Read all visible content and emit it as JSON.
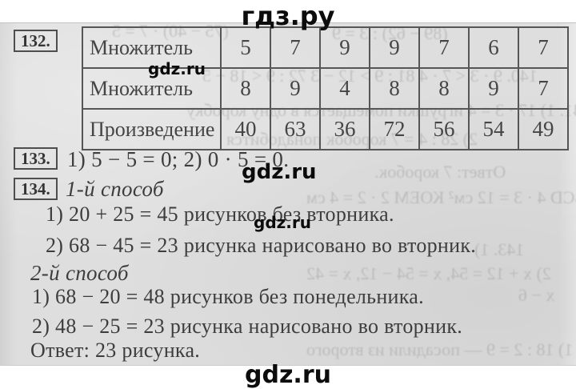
{
  "header": {
    "logo": "гдз.ру"
  },
  "footer": {
    "logo": "gdz.ru"
  },
  "watermarks": {
    "w1": "gdz.ru",
    "w2": "gdz.ru",
    "w3": "gdz.ru"
  },
  "colors": {
    "scan_background": "#dedede",
    "ink": "#3d3d3d",
    "watermark": "#0b0b0b",
    "table_border": "#565656"
  },
  "p132": {
    "number": "132.",
    "table": {
      "rows": [
        {
          "label": "Множитель",
          "values": [
            5,
            7,
            9,
            9,
            7,
            6,
            7
          ]
        },
        {
          "label": "Множитель",
          "values": [
            8,
            9,
            4,
            8,
            8,
            9,
            7
          ]
        },
        {
          "label": "Произведение",
          "values": [
            40,
            63,
            36,
            72,
            56,
            54,
            49
          ]
        }
      ]
    }
  },
  "p133": {
    "number": "133.",
    "solution": "1) 5 − 5 = 0; 2) 0 · 5 = 0."
  },
  "p134": {
    "number": "134.",
    "method1": {
      "title": "1-й способ",
      "steps": [
        "1) 20 + 25 = 45 рисунков без вторника.",
        "2) 68 − 45 = 23 рисунка нарисовано во вторник."
      ]
    },
    "method2": {
      "title": "2-й способ",
      "steps": [
        "1) 68 − 20 = 48 рисунков без понедельника.",
        "2) 48 − 25 = 23 рисунка нарисовано во вторник."
      ]
    },
    "answer": "Ответ: 23 рисунка."
  },
  "bleed": {
    "items": [
      "(75 − 40) · 7 = 5",
      "(89 − 62) : 3 = 9",
      "140. 9 · 3 < 7 · 4    81 : 9 > 12 − 3    72 : 9 < 18 − 5",
      "141. 1) 17 · 3 = 4 игрушки помещается в одну коробку",
      "2) 28 : 4 = 7 коробок понадобится",
      "Ответ: 7 коробок.",
      "142. ABCD 4 · 3 = 12 см²    КОЕМ 2 · 2 = 4 см",
      "143. 1)",
      "2) x + 12 = 54, x = 54 − 12, x = 42",
      "х − 6",
      "144. 1) 18 : 2 = 9 — посадили из второго"
    ]
  }
}
